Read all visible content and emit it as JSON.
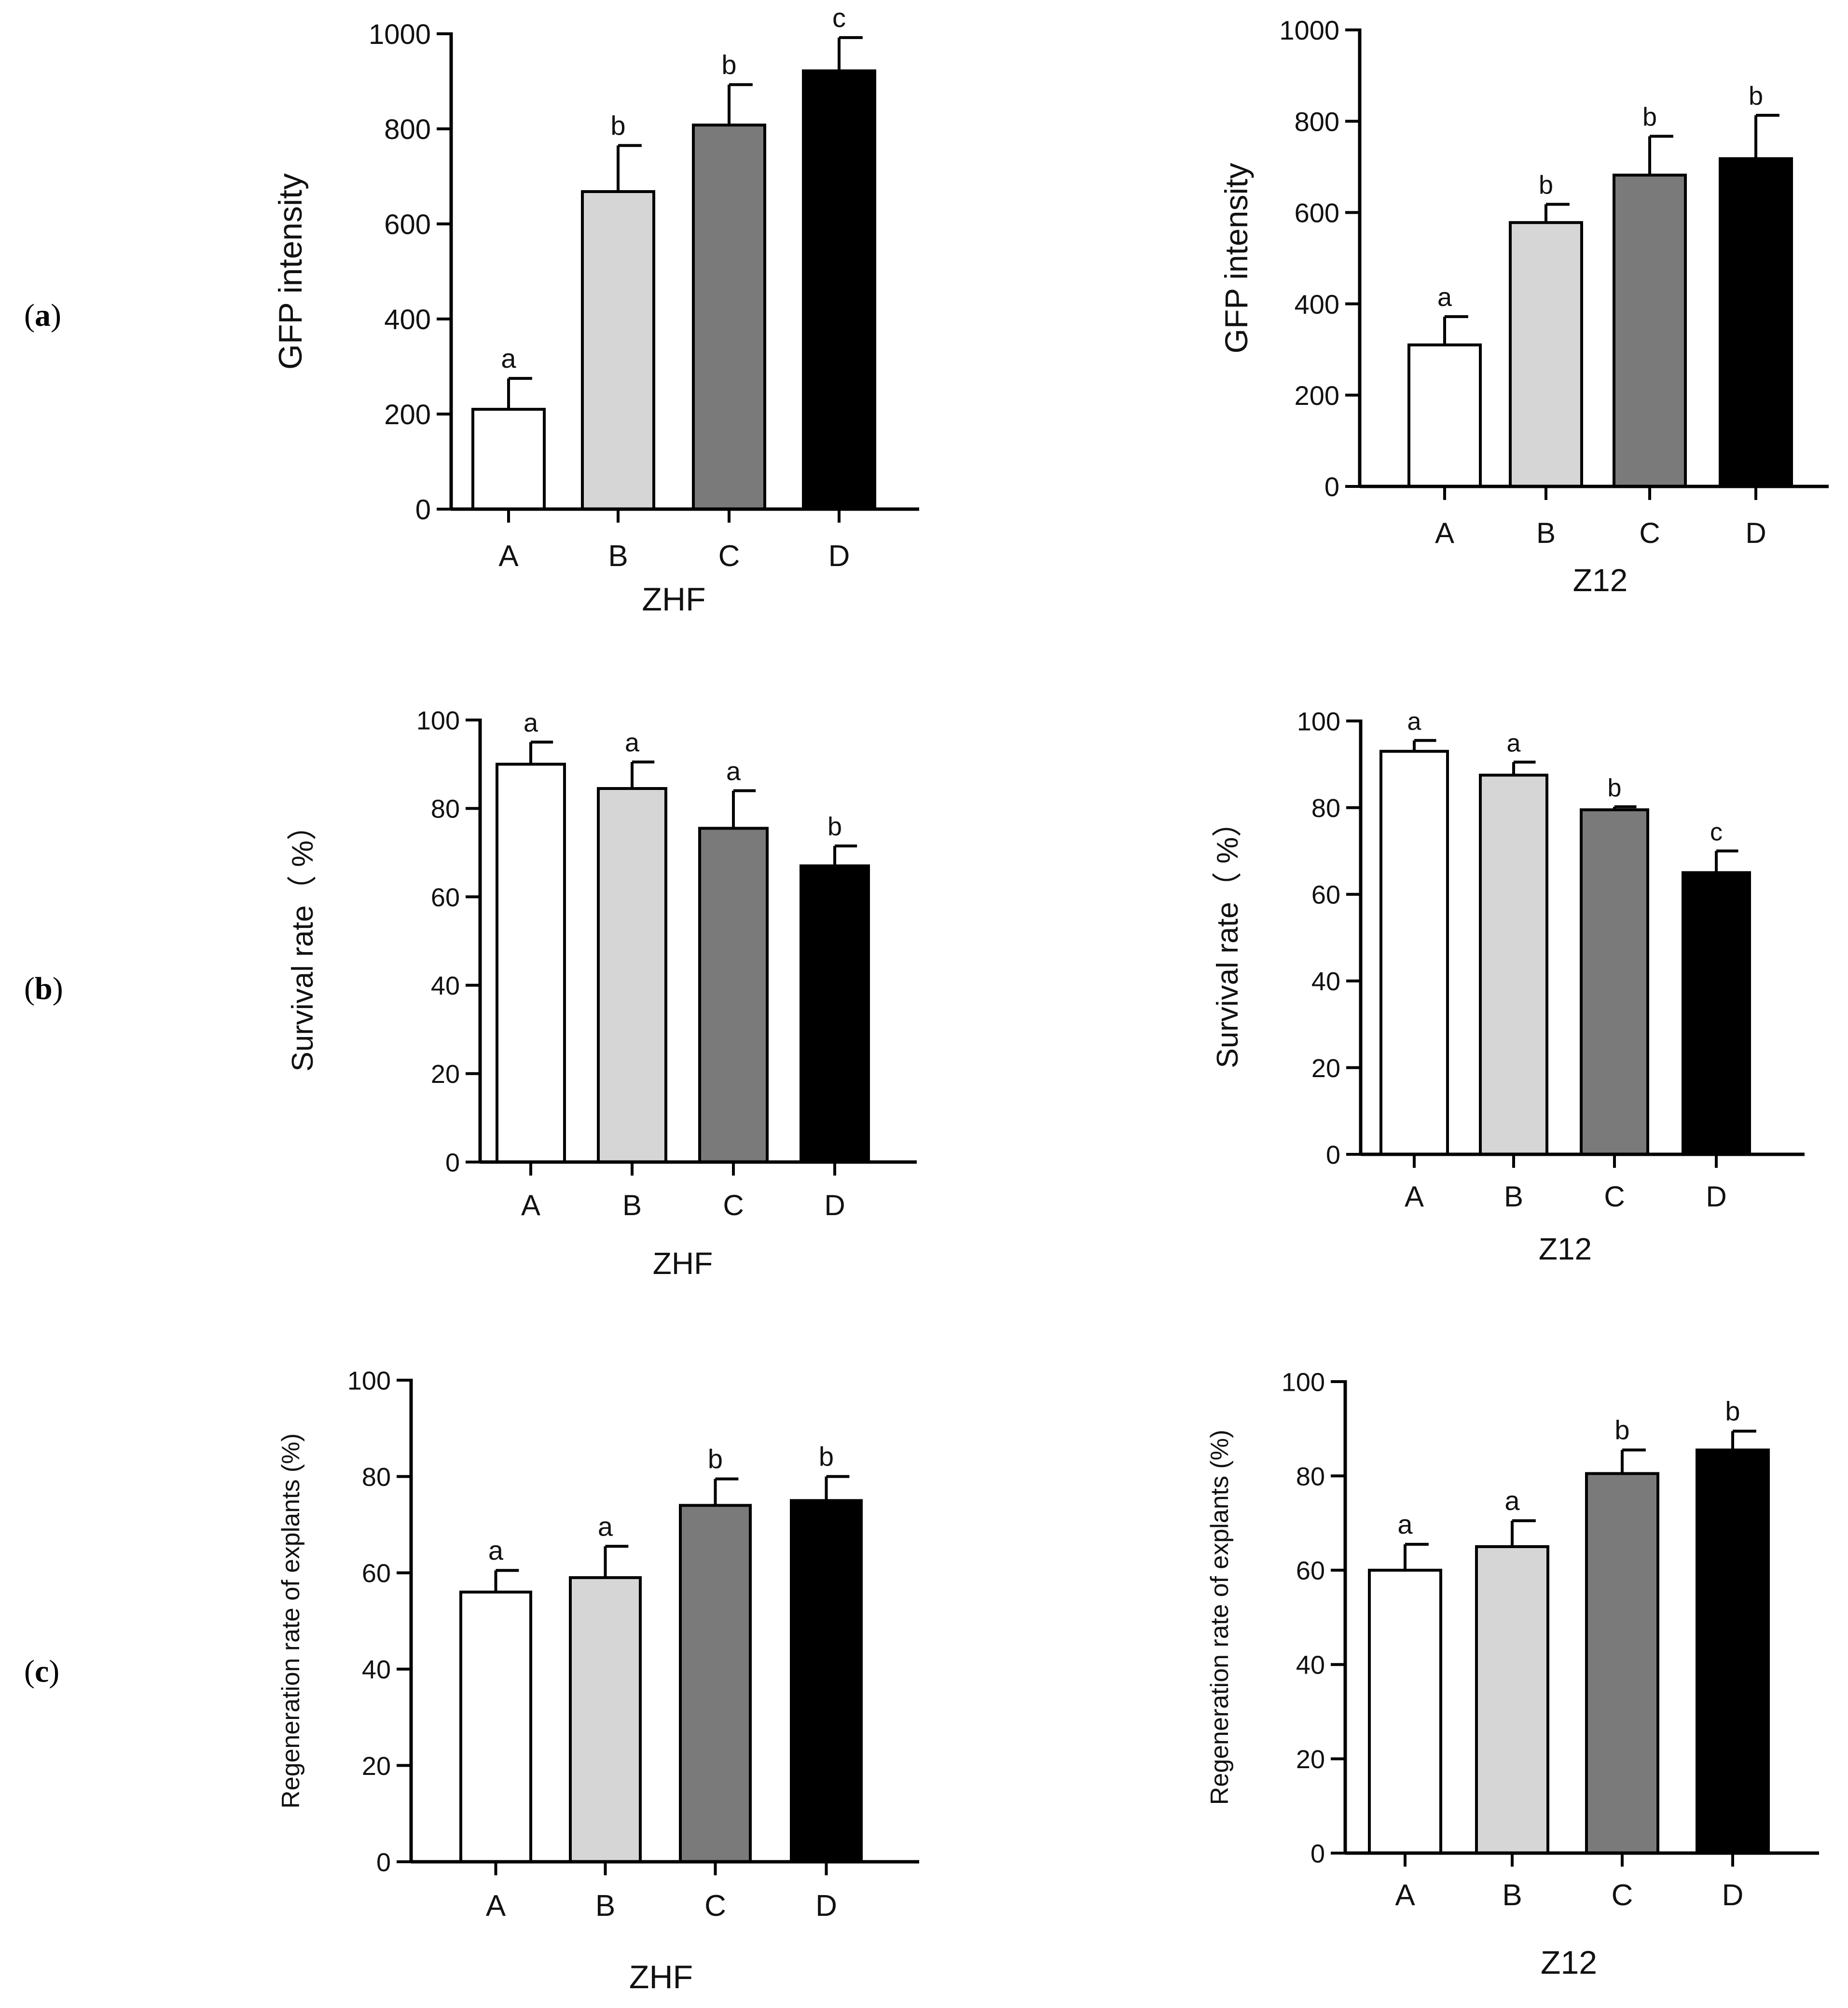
{
  "panel_labels": [
    {
      "open": "(",
      "letter": "a",
      "close": ")"
    },
    {
      "open": "(",
      "letter": "b",
      "close": ")"
    },
    {
      "open": "(",
      "letter": "c",
      "close": ")"
    }
  ],
  "colors": {
    "A": "#ffffff",
    "B": "#d6d6d6",
    "C": "#7a7a7a",
    "D": "#000000"
  },
  "chart_data": [
    {
      "type": "bar",
      "panel": "a",
      "position": "left",
      "title": "",
      "xlabel": "ZHF",
      "ylabel": "GFP intensity",
      "categories": [
        "A",
        "B",
        "C",
        "D"
      ],
      "values": [
        210,
        668,
        808,
        922
      ],
      "errors": [
        65,
        97,
        85,
        70
      ],
      "significance": [
        "a",
        "b",
        "b",
        "c"
      ],
      "ylim": [
        0,
        1000
      ],
      "yticks": [
        0,
        200,
        400,
        600,
        800,
        1000
      ],
      "ytick_labels": [
        "0",
        "200",
        "400",
        "600",
        "800",
        "1000"
      ],
      "grid": false
    },
    {
      "type": "bar",
      "panel": "a",
      "position": "right",
      "title": "",
      "xlabel": "Z12",
      "ylabel": "GFP intensity",
      "categories": [
        "A",
        "B",
        "C",
        "D"
      ],
      "values": [
        310,
        578,
        682,
        718
      ],
      "errors": [
        62,
        40,
        85,
        95
      ],
      "significance": [
        "a",
        "b",
        "b",
        "b"
      ],
      "ylim": [
        0,
        1000
      ],
      "yticks": [
        0,
        200,
        400,
        600,
        800,
        1000
      ],
      "ytick_labels": [
        "0",
        "200",
        "400",
        "600",
        "800",
        "1000"
      ],
      "grid": false
    },
    {
      "type": "bar",
      "panel": "b",
      "position": "left",
      "title": "",
      "xlabel": "ZHF",
      "ylabel": "Survival rate（ %）",
      "categories": [
        "A",
        "B",
        "C",
        "D"
      ],
      "values": [
        90,
        84.5,
        75.5,
        67
      ],
      "errors": [
        5,
        6,
        8.5,
        4.5
      ],
      "significance": [
        "a",
        "a",
        "a",
        "b"
      ],
      "ylim": [
        0,
        100
      ],
      "yticks": [
        0,
        20,
        40,
        60,
        80,
        100
      ],
      "ytick_labels": [
        "0",
        "20",
        "40",
        "60",
        "80",
        "100"
      ],
      "grid": false
    },
    {
      "type": "bar",
      "panel": "b",
      "position": "right",
      "title": "",
      "xlabel": "Z12",
      "ylabel": "Survival rate（ %）",
      "categories": [
        "A",
        "B",
        "C",
        "D"
      ],
      "values": [
        93,
        87.5,
        79.5,
        65
      ],
      "errors": [
        2.5,
        3,
        0.7,
        5
      ],
      "significance": [
        "a",
        "a",
        "b",
        "c"
      ],
      "ylim": [
        0,
        100
      ],
      "yticks": [
        0,
        20,
        40,
        60,
        80,
        100
      ],
      "ytick_labels": [
        "0",
        "20",
        "40",
        "60",
        "80",
        "100"
      ],
      "grid": false
    },
    {
      "type": "bar",
      "panel": "c",
      "position": "left",
      "title": "",
      "xlabel": "ZHF",
      "ylabel": "Regeneration rate of explants (%)",
      "categories": [
        "A",
        "B",
        "C",
        "D"
      ],
      "values": [
        56,
        59,
        74,
        75
      ],
      "errors": [
        4.5,
        6.5,
        5.5,
        5
      ],
      "significance": [
        "a",
        "a",
        "b",
        "b"
      ],
      "ylim": [
        0,
        100
      ],
      "yticks": [
        0,
        20,
        40,
        60,
        80,
        100
      ],
      "ytick_labels": [
        "0",
        "20",
        "40",
        "60",
        "80",
        "100"
      ],
      "grid": false
    },
    {
      "type": "bar",
      "panel": "c",
      "position": "right",
      "title": "",
      "xlabel": "Z12",
      "ylabel": "Regeneration rate of explants (%)",
      "categories": [
        "A",
        "B",
        "C",
        "D"
      ],
      "values": [
        60,
        65,
        80.5,
        85.5
      ],
      "errors": [
        5.5,
        5.5,
        5,
        4
      ],
      "significance": [
        "a",
        "a",
        "b",
        "b"
      ],
      "ylim": [
        0,
        100
      ],
      "yticks": [
        0,
        20,
        40,
        60,
        80,
        100
      ],
      "ytick_labels": [
        "0",
        "20",
        "40",
        "60",
        "80",
        "100"
      ],
      "grid": false
    }
  ]
}
